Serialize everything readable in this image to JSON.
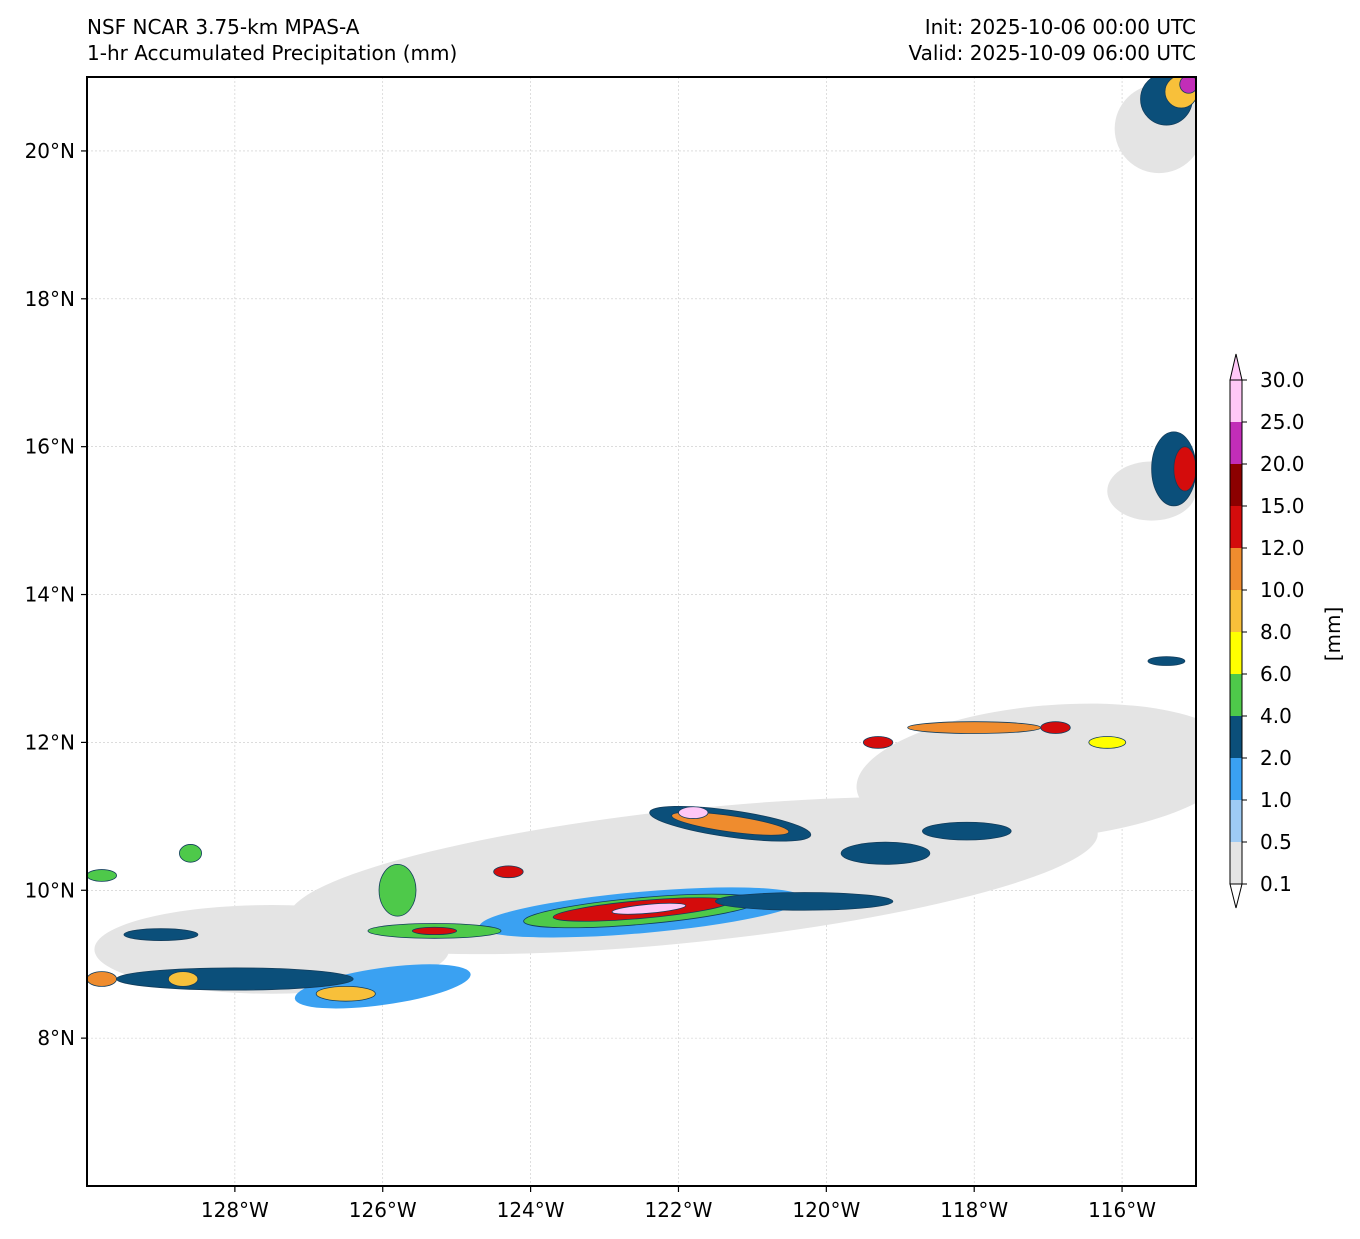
{
  "header": {
    "model": "NSF NCAR 3.75-km MPAS-A",
    "field": "1-hr Accumulated Precipitation (mm)",
    "init": "Init: 2025-10-06 00:00 UTC",
    "valid": "Valid: 2025-10-09 06:00 UTC"
  },
  "map": {
    "lon_range": [
      -130,
      -115
    ],
    "lat_range": [
      6,
      21
    ],
    "lon_ticks": [
      {
        "value": -128,
        "label": "128°W"
      },
      {
        "value": -126,
        "label": "126°W"
      },
      {
        "value": -124,
        "label": "124°W"
      },
      {
        "value": -122,
        "label": "122°W"
      },
      {
        "value": -120,
        "label": "120°W"
      },
      {
        "value": -118,
        "label": "118°W"
      },
      {
        "value": -116,
        "label": "116°W"
      }
    ],
    "lat_ticks": [
      {
        "value": 8,
        "label": "8°N"
      },
      {
        "value": 10,
        "label": "10°N"
      },
      {
        "value": 12,
        "label": "12°N"
      },
      {
        "value": 14,
        "label": "14°N"
      },
      {
        "value": 16,
        "label": "16°N"
      },
      {
        "value": 18,
        "label": "18°N"
      },
      {
        "value": 20,
        "label": "20°N"
      }
    ],
    "gridlines": true
  },
  "colorbar": {
    "unit_label": "[mm]",
    "extend": "both",
    "levels": [
      "0.1",
      "0.5",
      "1.0",
      "2.0",
      "4.0",
      "6.0",
      "8.0",
      "10.0",
      "12.0",
      "15.0",
      "20.0",
      "25.0",
      "30.0"
    ],
    "colors": [
      "#e4e4e4",
      "#9ecbf5",
      "#3aa1f2",
      "#0b4f7a",
      "#4ec94a",
      "#ffff00",
      "#f8c03a",
      "#ef8c2e",
      "#d40c0c",
      "#8c0000",
      "#c22db8",
      "#ffc8f7"
    ],
    "under_color": "#ffffff",
    "over_color": "#ffc8f7"
  },
  "precip_features": [
    {
      "lon": -121.8,
      "lat": 10.2,
      "rx": 5.5,
      "ry": 0.9,
      "rot": -6,
      "level": 0
    },
    {
      "lon": -117.0,
      "lat": 11.6,
      "rx": 2.6,
      "ry": 0.9,
      "rot": -5,
      "level": 0
    },
    {
      "lon": -127.5,
      "lat": 9.2,
      "rx": 2.4,
      "ry": 0.6,
      "rot": 0,
      "level": 0
    },
    {
      "lon": -115.5,
      "lat": 20.3,
      "rx": 0.6,
      "ry": 0.6,
      "rot": 0,
      "level": 0
    },
    {
      "lon": -115.6,
      "lat": 15.4,
      "rx": 0.6,
      "ry": 0.4,
      "rot": 0,
      "level": 0
    },
    {
      "lon": -122.5,
      "lat": 9.7,
      "rx": 2.2,
      "ry": 0.28,
      "rot": -5,
      "level": 2
    },
    {
      "lon": -122.5,
      "lat": 9.72,
      "rx": 1.6,
      "ry": 0.18,
      "rot": -5,
      "level": 4
    },
    {
      "lon": -122.5,
      "lat": 9.74,
      "rx": 1.2,
      "ry": 0.12,
      "rot": -5,
      "level": 8
    },
    {
      "lon": -122.4,
      "lat": 9.75,
      "rx": 0.5,
      "ry": 0.06,
      "rot": -5,
      "level": 11
    },
    {
      "lon": -121.3,
      "lat": 10.9,
      "rx": 1.1,
      "ry": 0.18,
      "rot": 8,
      "level": 3
    },
    {
      "lon": -121.3,
      "lat": 10.9,
      "rx": 0.8,
      "ry": 0.11,
      "rot": 8,
      "level": 7
    },
    {
      "lon": -121.8,
      "lat": 11.05,
      "rx": 0.2,
      "ry": 0.08,
      "rot": 0,
      "level": 11
    },
    {
      "lon": -120.3,
      "lat": 9.85,
      "rx": 1.2,
      "ry": 0.12,
      "rot": 0,
      "level": 3
    },
    {
      "lon": -125.3,
      "lat": 9.45,
      "rx": 0.9,
      "ry": 0.1,
      "rot": 0,
      "level": 4
    },
    {
      "lon": -125.3,
      "lat": 9.45,
      "rx": 0.3,
      "ry": 0.05,
      "rot": 0,
      "level": 8
    },
    {
      "lon": -126.0,
      "lat": 8.7,
      "rx": 1.2,
      "ry": 0.25,
      "rot": -8,
      "level": 2
    },
    {
      "lon": -125.8,
      "lat": 10.0,
      "rx": 0.25,
      "ry": 0.35,
      "rot": 0,
      "level": 4
    },
    {
      "lon": -124.3,
      "lat": 10.25,
      "rx": 0.2,
      "ry": 0.08,
      "rot": 0,
      "level": 8
    },
    {
      "lon": -119.3,
      "lat": 12.0,
      "rx": 0.2,
      "ry": 0.08,
      "rot": 0,
      "level": 8
    },
    {
      "lon": -118.0,
      "lat": 12.2,
      "rx": 0.9,
      "ry": 0.08,
      "rot": 0,
      "level": 7
    },
    {
      "lon": -116.9,
      "lat": 12.2,
      "rx": 0.2,
      "ry": 0.08,
      "rot": 0,
      "level": 8
    },
    {
      "lon": -116.2,
      "lat": 12.0,
      "rx": 0.25,
      "ry": 0.08,
      "rot": 0,
      "level": 5
    },
    {
      "lon": -119.2,
      "lat": 10.5,
      "rx": 0.6,
      "ry": 0.15,
      "rot": 0,
      "level": 3
    },
    {
      "lon": -118.1,
      "lat": 10.8,
      "rx": 0.6,
      "ry": 0.12,
      "rot": 0,
      "level": 3
    },
    {
      "lon": -128.0,
      "lat": 8.8,
      "rx": 1.6,
      "ry": 0.15,
      "rot": 0,
      "level": 3
    },
    {
      "lon": -128.7,
      "lat": 8.8,
      "rx": 0.2,
      "ry": 0.1,
      "rot": 0,
      "level": 6
    },
    {
      "lon": -129.8,
      "lat": 8.8,
      "rx": 0.2,
      "ry": 0.1,
      "rot": 0,
      "level": 7
    },
    {
      "lon": -126.5,
      "lat": 8.6,
      "rx": 0.4,
      "ry": 0.1,
      "rot": 0,
      "level": 6
    },
    {
      "lon": -129.0,
      "lat": 9.4,
      "rx": 0.5,
      "ry": 0.08,
      "rot": 0,
      "level": 3
    },
    {
      "lon": -128.6,
      "lat": 10.5,
      "rx": 0.15,
      "ry": 0.12,
      "rot": 0,
      "level": 4
    },
    {
      "lon": -129.8,
      "lat": 10.2,
      "rx": 0.2,
      "ry": 0.08,
      "rot": 0,
      "level": 4
    },
    {
      "lon": -115.4,
      "lat": 20.7,
      "rx": 0.35,
      "ry": 0.35,
      "rot": 0,
      "level": 3
    },
    {
      "lon": -115.2,
      "lat": 20.8,
      "rx": 0.22,
      "ry": 0.22,
      "rot": 0,
      "level": 6
    },
    {
      "lon": -115.1,
      "lat": 20.9,
      "rx": 0.12,
      "ry": 0.12,
      "rot": 0,
      "level": 10
    },
    {
      "lon": -115.3,
      "lat": 15.7,
      "rx": 0.3,
      "ry": 0.5,
      "rot": 0,
      "level": 3
    },
    {
      "lon": -115.15,
      "lat": 15.7,
      "rx": 0.15,
      "ry": 0.3,
      "rot": 0,
      "level": 8
    },
    {
      "lon": -115.4,
      "lat": 13.1,
      "rx": 0.25,
      "ry": 0.06,
      "rot": 0,
      "level": 3
    }
  ]
}
